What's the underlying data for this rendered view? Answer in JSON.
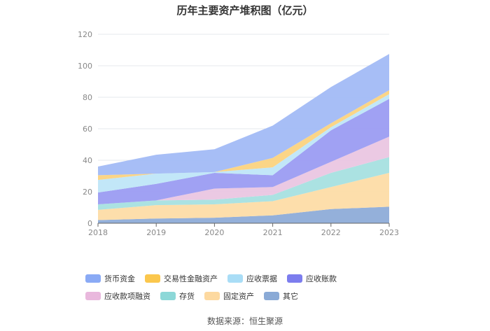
{
  "page": {
    "title": "历年主要资产堆积图（亿元）",
    "source": "数据来源：恒生聚源"
  },
  "chart_data": {
    "type": "area",
    "stacked": true,
    "title": "历年主要资产堆积图（亿元）",
    "x": [
      "2018",
      "2019",
      "2020",
      "2021",
      "2022",
      "2023"
    ],
    "ylim": [
      0,
      120
    ],
    "yticks": [
      0,
      20,
      40,
      60,
      80,
      100,
      120
    ],
    "grid": true,
    "legend_position": "bottom",
    "series": [
      {
        "name": "其它",
        "color": "#8EACD8",
        "values": [
          2,
          3,
          3.5,
          5,
          9,
          10.5
        ]
      },
      {
        "name": "固定资产",
        "color": "#FDDCA6",
        "values": [
          6.5,
          8.5,
          8.5,
          9,
          14,
          21.5
        ]
      },
      {
        "name": "存货",
        "color": "#A6E0E0",
        "values": [
          3.5,
          3,
          3,
          4,
          9,
          10
        ]
      },
      {
        "name": "应收款项融资",
        "color": "#EAC6E2",
        "values": [
          0,
          0,
          7,
          5,
          7,
          13
        ]
      },
      {
        "name": "应收账款",
        "color": "#9B9CF2",
        "values": [
          7.5,
          10.5,
          10,
          7.5,
          20,
          24
        ]
      },
      {
        "name": "应收票据",
        "color": "#BFE6F8",
        "values": [
          8,
          6.5,
          0.5,
          5,
          2,
          3
        ]
      },
      {
        "name": "交易性金融资产",
        "color": "#FBD37F",
        "values": [
          3,
          0,
          0,
          6,
          2.5,
          2.5
        ]
      },
      {
        "name": "货币资金",
        "color": "#A2BBF6",
        "values": [
          5.5,
          12,
          14.5,
          20.5,
          23,
          23
        ]
      }
    ],
    "legend_order": [
      "货币资金",
      "交易性金融资产",
      "应收票据",
      "应收账款",
      "应收款项融资",
      "存货",
      "固定资产",
      "其它"
    ],
    "legend_colors": {
      "货币资金": "#8AAAF5",
      "交易性金融资产": "#FBC74D",
      "应收票据": "#A9DDF6",
      "应收账款": "#7C7DEE",
      "应收款项融资": "#E9B8DD",
      "存货": "#8DD8D8",
      "固定资产": "#FDD9A0",
      "其它": "#8AAAD6"
    }
  }
}
